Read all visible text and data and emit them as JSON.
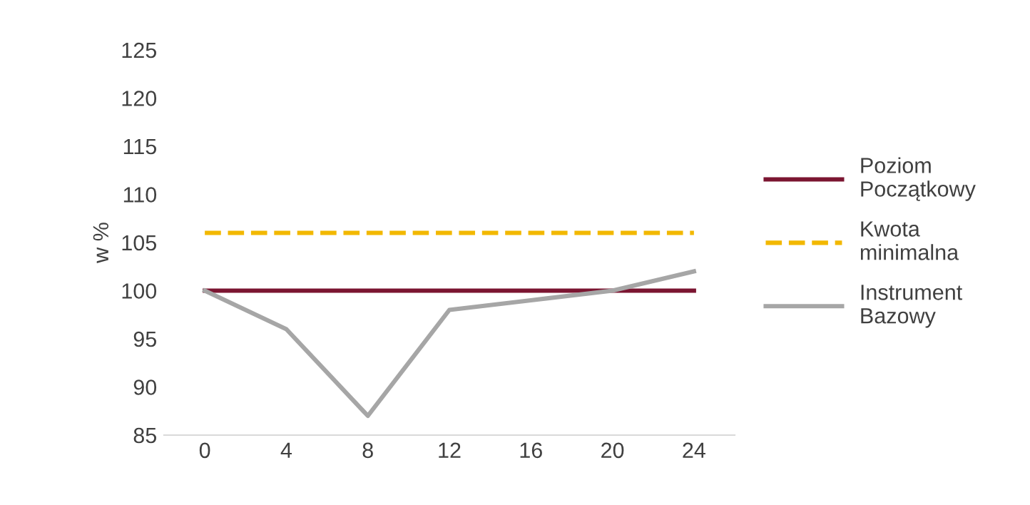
{
  "chart_data": {
    "type": "line",
    "ylabel": "w %",
    "categories": [
      "0",
      "4",
      "8",
      "12",
      "16",
      "20",
      "24"
    ],
    "series": [
      {
        "name": "Poziom Początkowy",
        "color": "#7b1531",
        "values": [
          100,
          100,
          100,
          100,
          100,
          100,
          100
        ]
      },
      {
        "name": "Kwota minimalna",
        "color": "#f2b800",
        "line_style": "dashed",
        "values": [
          106,
          106,
          106,
          106,
          106,
          106,
          106
        ]
      },
      {
        "name": "Instrument Bazowy",
        "color": "#a6a6a6",
        "values": [
          100,
          96,
          87,
          98,
          99,
          100,
          102
        ]
      }
    ],
    "ylim": [
      85,
      125
    ],
    "yticks": [
      85,
      90,
      95,
      100,
      105,
      110,
      115,
      120,
      125
    ],
    "grid": false,
    "legend": "right",
    "marker": "none"
  }
}
